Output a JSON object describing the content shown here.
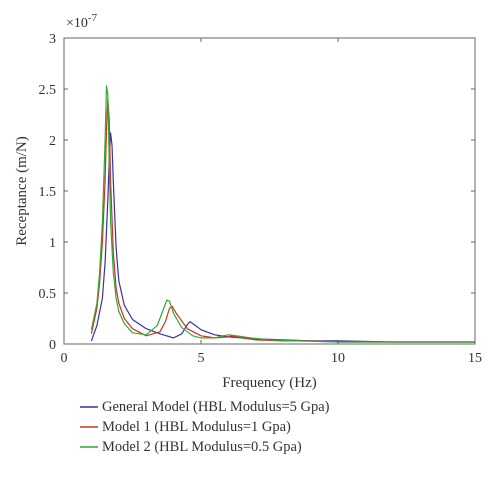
{
  "chart_data": {
    "type": "line",
    "xlabel": "Frequency (Hz)",
    "ylabel": "Receptance (m/N)",
    "y_multiplier_label": "×10",
    "y_multiplier_exponent": "-7",
    "xlim": [
      0,
      15
    ],
    "ylim": [
      0,
      3
    ],
    "x_ticks": [
      0,
      5,
      10,
      15
    ],
    "x_tick_labels": [
      "0",
      "5",
      "10",
      "15"
    ],
    "y_ticks": [
      0,
      0.5,
      1,
      1.5,
      2,
      2.5,
      3
    ],
    "y_tick_labels": [
      "0",
      "0.5",
      "1",
      "1.5",
      "2",
      "2.5",
      "3"
    ],
    "grid": false,
    "legend_position": "below-plot",
    "series": [
      {
        "name": "General Model (HBL Modulus=5 Gpa)",
        "color": "#3333aa",
        "x": [
          1.0,
          1.2,
          1.4,
          1.5,
          1.6,
          1.65,
          1.7,
          1.75,
          1.8,
          1.9,
          2.0,
          2.2,
          2.5,
          3.0,
          3.5,
          4.0,
          4.3,
          4.5,
          4.6,
          4.7,
          5.0,
          5.5,
          6.0,
          7.0,
          8.0,
          9.0,
          10.0,
          12.0,
          14.0,
          15.0
        ],
        "y": [
          0.03,
          0.18,
          0.45,
          0.8,
          1.4,
          1.8,
          2.07,
          1.95,
          1.6,
          0.95,
          0.62,
          0.38,
          0.24,
          0.15,
          0.1,
          0.06,
          0.1,
          0.19,
          0.22,
          0.2,
          0.14,
          0.09,
          0.07,
          0.05,
          0.04,
          0.03,
          0.03,
          0.02,
          0.02,
          0.02
        ]
      },
      {
        "name": "Model 1 (HBL Modulus=1 Gpa)",
        "color": "#cc3322",
        "x": [
          1.0,
          1.2,
          1.3,
          1.4,
          1.5,
          1.55,
          1.6,
          1.65,
          1.7,
          1.8,
          1.9,
          2.0,
          2.2,
          2.5,
          3.0,
          3.5,
          3.7,
          3.85,
          3.95,
          4.1,
          4.5,
          5.0,
          5.5,
          6.0,
          6.1,
          6.5,
          7.0,
          8.0,
          9.0,
          10.0,
          12.0,
          14.0,
          15.0
        ],
        "y": [
          0.1,
          0.35,
          0.6,
          1.0,
          1.6,
          2.1,
          2.4,
          2.2,
          1.6,
          0.9,
          0.55,
          0.4,
          0.25,
          0.15,
          0.08,
          0.12,
          0.22,
          0.35,
          0.37,
          0.3,
          0.15,
          0.08,
          0.06,
          0.07,
          0.08,
          0.06,
          0.04,
          0.03,
          0.03,
          0.02,
          0.02,
          0.02,
          0.02
        ]
      },
      {
        "name": "Model 2 (HBL Modulus=0.5 Gpa)",
        "color": "#33aa33",
        "x": [
          1.0,
          1.2,
          1.3,
          1.4,
          1.5,
          1.55,
          1.6,
          1.65,
          1.7,
          1.8,
          1.9,
          2.0,
          2.2,
          2.5,
          3.0,
          3.4,
          3.6,
          3.75,
          3.85,
          4.0,
          4.3,
          4.7,
          5.0,
          5.5,
          5.8,
          6.0,
          6.3,
          6.8,
          7.5,
          8.5,
          10.0,
          12.0,
          14.0,
          15.0
        ],
        "y": [
          0.14,
          0.4,
          0.7,
          1.2,
          2.0,
          2.53,
          2.45,
          1.8,
          1.2,
          0.7,
          0.45,
          0.32,
          0.2,
          0.11,
          0.09,
          0.18,
          0.32,
          0.43,
          0.42,
          0.3,
          0.16,
          0.08,
          0.06,
          0.06,
          0.08,
          0.09,
          0.08,
          0.06,
          0.04,
          0.03,
          0.02,
          0.02,
          0.02,
          0.02
        ]
      }
    ]
  }
}
